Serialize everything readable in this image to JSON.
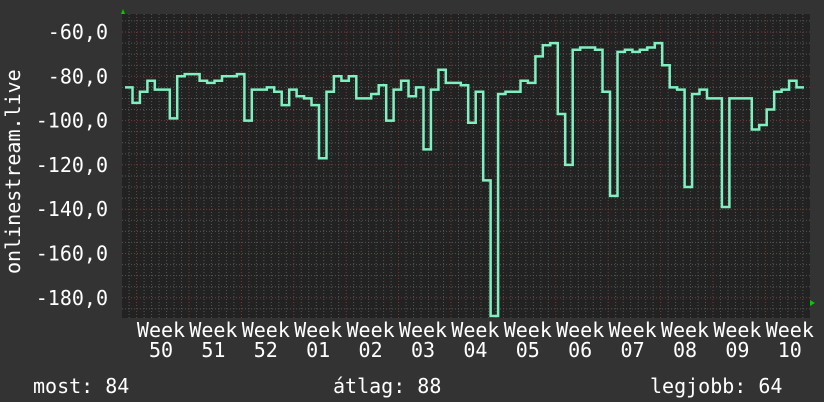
{
  "chart_data": {
    "type": "line",
    "ylabel": "onlinestream.live",
    "xlabel": "",
    "ylim": [
      -189,
      -51
    ],
    "yticks": [
      "-60,0",
      "-80,0",
      "-100,0",
      "-120,0",
      "-140,0",
      "-160,0",
      "-180,0"
    ],
    "ytick_values": [
      -60,
      -80,
      -100,
      -120,
      -140,
      -160,
      -180
    ],
    "xticks": [
      "Week 50",
      "Week 51",
      "Week 52",
      "Week 01",
      "Week 02",
      "Week 03",
      "Week 04",
      "Week 05",
      "Week 06",
      "Week 07",
      "Week 08",
      "Week 09",
      "Week 10"
    ],
    "grid": true,
    "step": true,
    "colors": {
      "background": "#333333",
      "plot": "#222222",
      "line": "#7ff0c0",
      "major_grid": "#7a3a3a",
      "minor_grid": "#555555",
      "arrow": "#00cc00"
    },
    "series": [
      {
        "values": [
          -85,
          -92,
          -87,
          -82,
          -86,
          -86,
          -99,
          -80,
          -79,
          -79,
          -82,
          -83,
          -82,
          -80,
          -80,
          -79,
          -100,
          -86,
          -86,
          -85,
          -87,
          -93,
          -86,
          -89,
          -90,
          -93,
          -117,
          -87,
          -80,
          -82,
          -80,
          -90,
          -90,
          -88,
          -84,
          -100,
          -86,
          -82,
          -89,
          -85,
          -113,
          -86,
          -77,
          -83,
          -83,
          -84,
          -101,
          -87,
          -127,
          -195,
          -88,
          -87,
          -87,
          -82,
          -83,
          -71,
          -66,
          -65,
          -97,
          -120,
          -68,
          -67,
          -67,
          -68,
          -87,
          -134,
          -69,
          -68,
          -69,
          -68,
          -67,
          -65,
          -75,
          -85,
          -86,
          -130,
          -88,
          -86,
          -90,
          -90,
          -139,
          -90,
          -90,
          -90,
          -104,
          -102,
          -95,
          -87,
          -86,
          -82,
          -85
        ]
      }
    ]
  },
  "legend": {
    "current": "most: 84",
    "average": "átlag: 88",
    "max": "legjobb: 64"
  }
}
